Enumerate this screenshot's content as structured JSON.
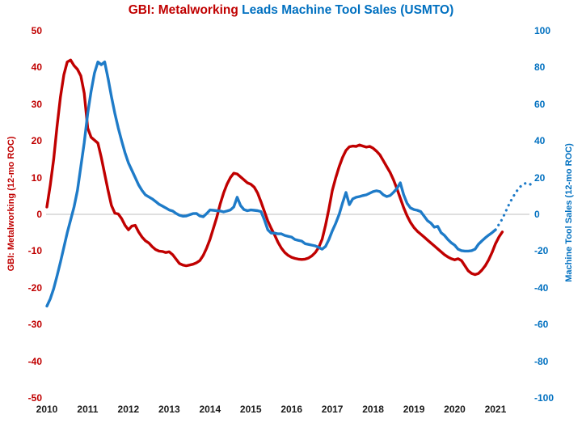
{
  "chart_data": {
    "type": "line",
    "title_red": "GBI: Metalworking",
    "title_blue": " Leads Machine Tool Sales (USMTO)",
    "title_red_color": "#C00000",
    "title_blue_color": "#0070C0",
    "x_axis": {
      "tick_labels": [
        "2010",
        "2011",
        "2012",
        "2013",
        "2014",
        "2015",
        "2016",
        "2017",
        "2018",
        "2019",
        "2020",
        "2021"
      ],
      "color": "#1a1a1a",
      "interval": "monthly, labels at years"
    },
    "left_axis": {
      "label": "GBI: Metalworking (12-mo ROC)",
      "color": "#C00000",
      "min": -50,
      "max": 50,
      "tick_step": 10,
      "tick_labels": [
        50,
        40,
        30,
        20,
        10,
        0,
        -10,
        -20,
        -30,
        -40,
        -50
      ]
    },
    "right_axis": {
      "label": "Machine Tool Sales (12-mo ROC)",
      "color": "#0070C0",
      "min": -100,
      "max": 100,
      "tick_step": 20,
      "tick_labels": [
        100,
        80,
        60,
        40,
        20,
        0,
        -20,
        -40,
        -60,
        -80,
        -100
      ]
    },
    "grid": "single gray line at zero only",
    "gridline_color": "#BFBFBF",
    "legend": "none",
    "x_start": "2010-01",
    "series": [
      {
        "name": "GBI: Metalworking (12-mo ROC)",
        "axis": "left",
        "color": "#C00000",
        "line_style": "solid",
        "start_month_index": 0,
        "values": [
          2,
          8,
          15,
          24,
          32,
          38,
          41.5,
          42,
          40.5,
          39.5,
          37.7,
          33,
          23.5,
          21,
          20.2,
          19.4,
          15.5,
          11,
          6.5,
          2.4,
          0.3,
          0.1,
          -1.2,
          -3,
          -4.2,
          -3.2,
          -3,
          -4.8,
          -6.2,
          -7.2,
          -7.8,
          -8.8,
          -9.6,
          -10,
          -10.1,
          -10.4,
          -10.2,
          -11,
          -12.2,
          -13.4,
          -13.8,
          -14,
          -13.8,
          -13.6,
          -13.2,
          -12.6,
          -11.2,
          -9.2,
          -6.8,
          -3.8,
          -0.8,
          2.8,
          5.8,
          8.2,
          10,
          11.2,
          11,
          10.2,
          9.4,
          8.6,
          8.2,
          7.4,
          5.8,
          3.4,
          0.8,
          -1.8,
          -3.8,
          -5.6,
          -7.6,
          -9.2,
          -10.4,
          -11.2,
          -11.7,
          -12,
          -12.2,
          -12.3,
          -12.2,
          -11.9,
          -11.3,
          -10.4,
          -9,
          -6.8,
          -3,
          1.5,
          6.5,
          10,
          13,
          15.5,
          17.4,
          18.4,
          18.6,
          18.5,
          18.9,
          18.6,
          18.3,
          18.5,
          18,
          17.2,
          16.2,
          14.6,
          13,
          11.4,
          9.4,
          7,
          4.4,
          1.8,
          -0.4,
          -2.2,
          -3.6,
          -4.6,
          -5.4,
          -6.2,
          -7,
          -7.8,
          -8.6,
          -9.4,
          -10.2,
          -11,
          -11.6,
          -12.1,
          -12.4,
          -12.1,
          -12.6,
          -14,
          -15.4,
          -16.1,
          -16.4,
          -16.1,
          -15.2,
          -14,
          -12.4,
          -10.4,
          -8,
          -6.2,
          -4.8
        ]
      },
      {
        "name": "Machine Tool Sales (12-mo ROC)",
        "axis": "right",
        "color": "#1E7BC8",
        "line_style": "solid",
        "start_month_index": 0,
        "values": [
          -50,
          -46,
          -40.5,
          -33.5,
          -26,
          -18,
          -10,
          -3,
          4,
          13,
          26,
          39,
          55,
          67,
          77,
          83,
          81.5,
          83,
          74,
          64,
          55,
          47,
          40,
          33.5,
          28,
          24,
          20,
          16,
          13,
          10.6,
          9.5,
          8.4,
          7,
          5.5,
          4.5,
          3.5,
          2.4,
          1.8,
          0.5,
          -0.5,
          -1,
          -0.9,
          -0.2,
          0.4,
          0.5,
          -0.9,
          -1.3,
          0.4,
          2.4,
          2.2,
          2,
          1.8,
          1.3,
          1.8,
          2.4,
          4,
          9.3,
          4.8,
          2.6,
          2,
          2.4,
          2.2,
          2,
          1.5,
          -3,
          -8.4,
          -10.2,
          -10.2,
          -10.6,
          -10.6,
          -11.5,
          -12,
          -12.4,
          -13.7,
          -14.2,
          -14.6,
          -16,
          -16.4,
          -16.8,
          -17.2,
          -18,
          -19,
          -17.5,
          -13.7,
          -9,
          -4.8,
          0,
          6.2,
          11.9,
          5.3,
          8.4,
          9.3,
          9.7,
          10.2,
          10.6,
          11.5,
          12.4,
          12.8,
          12.4,
          10.6,
          9.7,
          10.2,
          12,
          14,
          17.2,
          10.6,
          6,
          3.5,
          2.6,
          2.2,
          1.5,
          -1,
          -3.5,
          -4.8,
          -7,
          -6.5,
          -10,
          -11.5,
          -13.7,
          -15.5,
          -16.8,
          -19,
          -19.8,
          -20,
          -20,
          -19.8,
          -19,
          -16.3,
          -14.5,
          -12.8,
          -11.3,
          -10,
          -8.4
        ]
      },
      {
        "name": "Machine Tool Sales projection (dotted)",
        "axis": "right",
        "color": "#1E7BC8",
        "line_style": "dotted",
        "start_month_index": 132,
        "values": [
          -8.4,
          -5.5,
          -2.5,
          1.5,
          5.5,
          9,
          12,
          14.5,
          16.3,
          17,
          16.8,
          15
        ]
      }
    ]
  }
}
